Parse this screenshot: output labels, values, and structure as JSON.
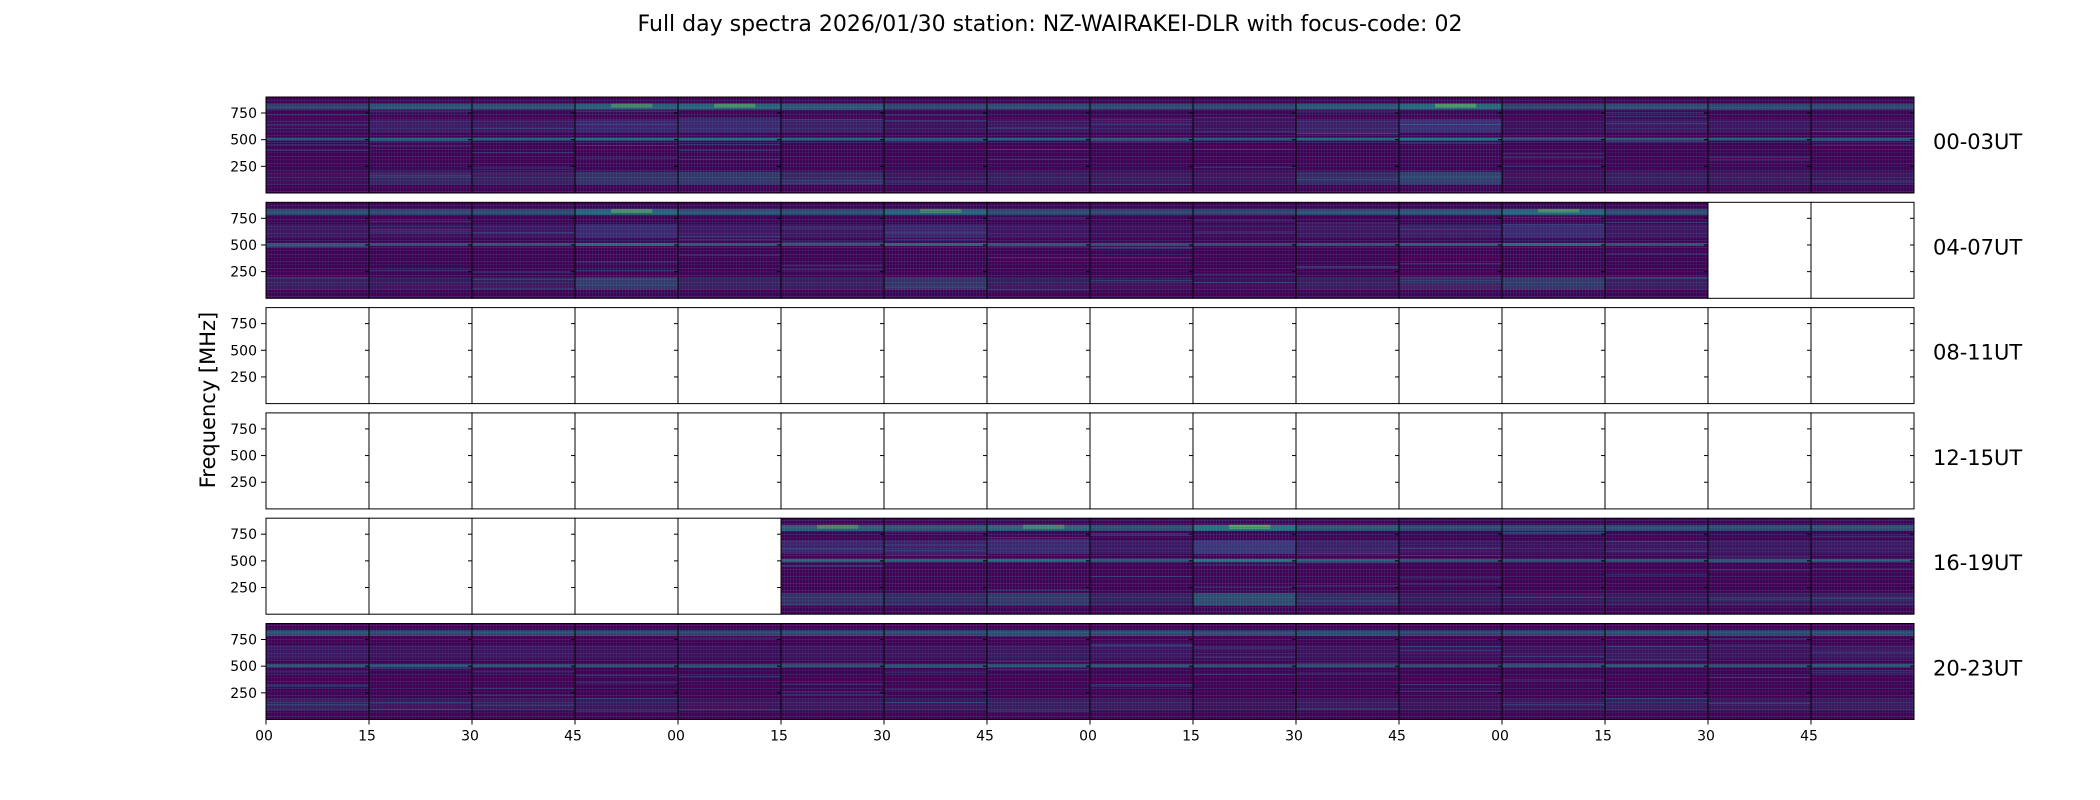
{
  "chart_data": {
    "type": "heatmap",
    "title": "Full day spectra 2026/01/30 station: NZ-WAIRAKEI-DLR with focus-code: 02",
    "ylabel": "Frequency [MHz]",
    "xlabel": "",
    "ylim": [
      0,
      900
    ],
    "y_ticks": [
      250,
      500,
      750
    ],
    "y_tick_labels": [
      "250",
      "500",
      "750"
    ],
    "x_tick_labels": [
      "00",
      "15",
      "30",
      "45",
      "00",
      "15",
      "30",
      "45",
      "00",
      "15",
      "30",
      "45",
      "00",
      "15",
      "30",
      "45"
    ],
    "colormap": "viridis",
    "colors": {
      "low": "#440154",
      "mid": "#21918c",
      "high": "#fde725"
    },
    "panels_per_row": 16,
    "rows": [
      {
        "label": "00-03UT",
        "has_data": [
          1,
          1,
          1,
          1,
          1,
          1,
          1,
          1,
          1,
          1,
          1,
          1,
          1,
          1,
          1,
          1
        ],
        "activity": [
          0.1,
          0.25,
          0.22,
          0.35,
          0.4,
          0.28,
          0.15,
          0.2,
          0.18,
          0.15,
          0.3,
          0.45,
          0.12,
          0.2,
          0.18,
          0.15
        ]
      },
      {
        "label": "04-07UT",
        "has_data": [
          1,
          1,
          1,
          1,
          1,
          1,
          1,
          1,
          1,
          1,
          1,
          1,
          1,
          1,
          0,
          0
        ],
        "activity": [
          0.2,
          0.15,
          0.18,
          0.4,
          0.22,
          0.2,
          0.35,
          0.18,
          0.12,
          0.1,
          0.2,
          0.25,
          0.4,
          0.2,
          0,
          0
        ]
      },
      {
        "label": "08-11UT",
        "has_data": [
          0,
          0,
          0,
          0,
          0,
          0,
          0,
          0,
          0,
          0,
          0,
          0,
          0,
          0,
          0,
          0
        ],
        "activity": [
          0,
          0,
          0,
          0,
          0,
          0,
          0,
          0,
          0,
          0,
          0,
          0,
          0,
          0,
          0,
          0
        ]
      },
      {
        "label": "12-15UT",
        "has_data": [
          0,
          0,
          0,
          0,
          0,
          0,
          0,
          0,
          0,
          0,
          0,
          0,
          0,
          0,
          0,
          0
        ],
        "activity": [
          0,
          0,
          0,
          0,
          0,
          0,
          0,
          0,
          0,
          0,
          0,
          0,
          0,
          0,
          0,
          0
        ]
      },
      {
        "label": "16-19UT",
        "has_data": [
          0,
          0,
          0,
          0,
          0,
          1,
          1,
          1,
          1,
          1,
          1,
          1,
          1,
          1,
          1,
          1
        ],
        "activity": [
          0,
          0,
          0,
          0,
          0,
          0.35,
          0.3,
          0.4,
          0.22,
          0.55,
          0.3,
          0.18,
          0.15,
          0.18,
          0.2,
          0.22
        ]
      },
      {
        "label": "20-23UT",
        "has_data": [
          1,
          1,
          1,
          1,
          1,
          1,
          1,
          1,
          1,
          1,
          1,
          1,
          1,
          1,
          1,
          1
        ],
        "activity": [
          0.22,
          0.15,
          0.18,
          0.15,
          0.12,
          0.15,
          0.15,
          0.2,
          0.18,
          0.12,
          0.15,
          0.12,
          0.15,
          0.2,
          0.15,
          0.18
        ]
      }
    ]
  }
}
